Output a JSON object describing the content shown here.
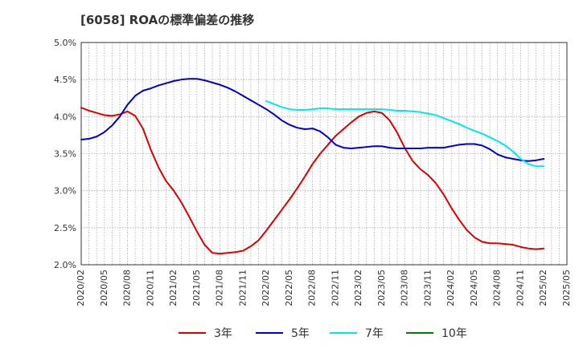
{
  "title": "[6058]  ROAの標準偏差の推移",
  "chart_data": {
    "type": "line",
    "title": "[6058]  ROAの標準偏差の推移",
    "ylim": [
      2.0,
      5.0
    ],
    "y_ticks": [
      "2.0%",
      "2.5%",
      "3.0%",
      "3.5%",
      "4.0%",
      "4.5%",
      "5.0%"
    ],
    "x_range": [
      "2020-02",
      "2025-05"
    ],
    "x_ticks": [
      "2020/02",
      "2020/05",
      "2020/08",
      "2020/11",
      "2021/02",
      "2021/05",
      "2021/08",
      "2021/11",
      "2022/02",
      "2022/05",
      "2022/08",
      "2022/11",
      "2023/02",
      "2023/05",
      "2023/08",
      "2023/11",
      "2024/02",
      "2024/05",
      "2024/08",
      "2024/11",
      "2025/02",
      "2025/05"
    ],
    "grid": true,
    "legend_position": "bottom",
    "series": [
      {
        "name": "3年",
        "color": "#dd0000",
        "points": [
          [
            "2020-02",
            4.12
          ],
          [
            "2020-03",
            4.08
          ],
          [
            "2020-04",
            4.05
          ],
          [
            "2020-05",
            4.02
          ],
          [
            "2020-06",
            4.01
          ],
          [
            "2020-07",
            4.03
          ],
          [
            "2020-08",
            4.07
          ],
          [
            "2020-09",
            4.01
          ],
          [
            "2020-10",
            3.84
          ],
          [
            "2020-11",
            3.56
          ],
          [
            "2020-12",
            3.32
          ],
          [
            "2021-01",
            3.13
          ],
          [
            "2021-02",
            3.0
          ],
          [
            "2021-03",
            2.84
          ],
          [
            "2021-04",
            2.65
          ],
          [
            "2021-05",
            2.45
          ],
          [
            "2021-06",
            2.27
          ],
          [
            "2021-07",
            2.16
          ],
          [
            "2021-08",
            2.15
          ],
          [
            "2021-09",
            2.16
          ],
          [
            "2021-10",
            2.17
          ],
          [
            "2021-11",
            2.19
          ],
          [
            "2021-12",
            2.25
          ],
          [
            "2022-01",
            2.33
          ],
          [
            "2022-02",
            2.46
          ],
          [
            "2022-03",
            2.6
          ],
          [
            "2022-04",
            2.74
          ],
          [
            "2022-05",
            2.88
          ],
          [
            "2022-06",
            3.03
          ],
          [
            "2022-07",
            3.19
          ],
          [
            "2022-08",
            3.36
          ],
          [
            "2022-09",
            3.5
          ],
          [
            "2022-10",
            3.62
          ],
          [
            "2022-11",
            3.74
          ],
          [
            "2022-12",
            3.83
          ],
          [
            "2023-01",
            3.92
          ],
          [
            "2023-02",
            4.0
          ],
          [
            "2023-03",
            4.05
          ],
          [
            "2023-04",
            4.07
          ],
          [
            "2023-05",
            4.05
          ],
          [
            "2023-06",
            3.95
          ],
          [
            "2023-07",
            3.78
          ],
          [
            "2023-08",
            3.57
          ],
          [
            "2023-09",
            3.4
          ],
          [
            "2023-10",
            3.29
          ],
          [
            "2023-11",
            3.21
          ],
          [
            "2023-12",
            3.1
          ],
          [
            "2024-01",
            2.95
          ],
          [
            "2024-02",
            2.77
          ],
          [
            "2024-03",
            2.61
          ],
          [
            "2024-04",
            2.47
          ],
          [
            "2024-05",
            2.37
          ],
          [
            "2024-06",
            2.31
          ],
          [
            "2024-07",
            2.29
          ],
          [
            "2024-08",
            2.29
          ],
          [
            "2024-09",
            2.28
          ],
          [
            "2024-10",
            2.27
          ],
          [
            "2024-11",
            2.24
          ],
          [
            "2024-12",
            2.22
          ],
          [
            "2025-01",
            2.21
          ],
          [
            "2025-02",
            2.22
          ]
        ]
      },
      {
        "name": "5年",
        "color": "#0000cc",
        "points": [
          [
            "2020-02",
            3.69
          ],
          [
            "2020-03",
            3.7
          ],
          [
            "2020-04",
            3.73
          ],
          [
            "2020-05",
            3.79
          ],
          [
            "2020-06",
            3.88
          ],
          [
            "2020-07",
            4.0
          ],
          [
            "2020-08",
            4.16
          ],
          [
            "2020-09",
            4.28
          ],
          [
            "2020-10",
            4.35
          ],
          [
            "2020-11",
            4.38
          ],
          [
            "2020-12",
            4.42
          ],
          [
            "2021-01",
            4.45
          ],
          [
            "2021-02",
            4.48
          ],
          [
            "2021-03",
            4.5
          ],
          [
            "2021-04",
            4.51
          ],
          [
            "2021-05",
            4.51
          ],
          [
            "2021-06",
            4.49
          ],
          [
            "2021-07",
            4.46
          ],
          [
            "2021-08",
            4.43
          ],
          [
            "2021-09",
            4.39
          ],
          [
            "2021-10",
            4.34
          ],
          [
            "2021-11",
            4.28
          ],
          [
            "2021-12",
            4.22
          ],
          [
            "2022-01",
            4.16
          ],
          [
            "2022-02",
            4.1
          ],
          [
            "2022-03",
            4.03
          ],
          [
            "2022-04",
            3.95
          ],
          [
            "2022-05",
            3.89
          ],
          [
            "2022-06",
            3.85
          ],
          [
            "2022-07",
            3.83
          ],
          [
            "2022-08",
            3.84
          ],
          [
            "2022-09",
            3.8
          ],
          [
            "2022-10",
            3.72
          ],
          [
            "2022-11",
            3.62
          ],
          [
            "2022-12",
            3.58
          ],
          [
            "2023-01",
            3.57
          ],
          [
            "2023-02",
            3.58
          ],
          [
            "2023-03",
            3.59
          ],
          [
            "2023-04",
            3.6
          ],
          [
            "2023-05",
            3.6
          ],
          [
            "2023-06",
            3.58
          ],
          [
            "2023-07",
            3.57
          ],
          [
            "2023-08",
            3.57
          ],
          [
            "2023-09",
            3.57
          ],
          [
            "2023-10",
            3.57
          ],
          [
            "2023-11",
            3.58
          ],
          [
            "2023-12",
            3.58
          ],
          [
            "2024-01",
            3.58
          ],
          [
            "2024-02",
            3.6
          ],
          [
            "2024-03",
            3.62
          ],
          [
            "2024-04",
            3.63
          ],
          [
            "2024-05",
            3.63
          ],
          [
            "2024-06",
            3.61
          ],
          [
            "2024-07",
            3.56
          ],
          [
            "2024-08",
            3.49
          ],
          [
            "2024-09",
            3.45
          ],
          [
            "2024-10",
            3.43
          ],
          [
            "2024-11",
            3.41
          ],
          [
            "2024-12",
            3.4
          ],
          [
            "2025-01",
            3.41
          ],
          [
            "2025-02",
            3.43
          ]
        ]
      },
      {
        "name": "7年",
        "color": "#00e8ee",
        "points": [
          [
            "2022-02",
            4.21
          ],
          [
            "2022-03",
            4.17
          ],
          [
            "2022-04",
            4.13
          ],
          [
            "2022-05",
            4.1
          ],
          [
            "2022-06",
            4.09
          ],
          [
            "2022-07",
            4.09
          ],
          [
            "2022-08",
            4.1
          ],
          [
            "2022-09",
            4.11
          ],
          [
            "2022-10",
            4.11
          ],
          [
            "2022-11",
            4.1
          ],
          [
            "2022-12",
            4.1
          ],
          [
            "2023-01",
            4.1
          ],
          [
            "2023-02",
            4.1
          ],
          [
            "2023-03",
            4.1
          ],
          [
            "2023-04",
            4.1
          ],
          [
            "2023-05",
            4.1
          ],
          [
            "2023-06",
            4.09
          ],
          [
            "2023-07",
            4.08
          ],
          [
            "2023-08",
            4.08
          ],
          [
            "2023-09",
            4.07
          ],
          [
            "2023-10",
            4.06
          ],
          [
            "2023-11",
            4.04
          ],
          [
            "2023-12",
            4.02
          ],
          [
            "2024-01",
            3.98
          ],
          [
            "2024-02",
            3.94
          ],
          [
            "2024-03",
            3.9
          ],
          [
            "2024-04",
            3.85
          ],
          [
            "2024-05",
            3.81
          ],
          [
            "2024-06",
            3.77
          ],
          [
            "2024-07",
            3.72
          ],
          [
            "2024-08",
            3.67
          ],
          [
            "2024-09",
            3.61
          ],
          [
            "2024-10",
            3.53
          ],
          [
            "2024-11",
            3.43
          ],
          [
            "2024-12",
            3.36
          ],
          [
            "2025-01",
            3.33
          ],
          [
            "2025-02",
            3.33
          ]
        ]
      },
      {
        "name": "10年",
        "color": "#008000",
        "points": []
      }
    ]
  }
}
